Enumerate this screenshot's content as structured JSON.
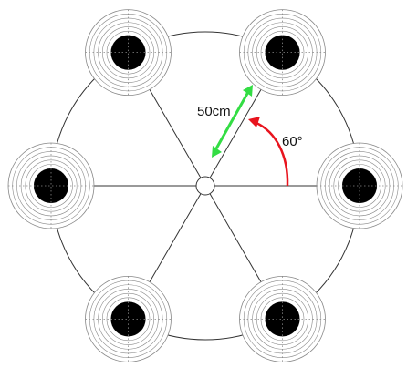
{
  "diagram": {
    "distance_label": "50cm",
    "angle_label": "60°",
    "target_count": 6,
    "target_ring_count": 10,
    "colors": {
      "background": "#ffffff",
      "lines": "#333333",
      "target_rings": "#888888",
      "target_bull": "#000000",
      "distance_arrow": "#33dd44",
      "angle_arrow": "#e8141e"
    }
  }
}
